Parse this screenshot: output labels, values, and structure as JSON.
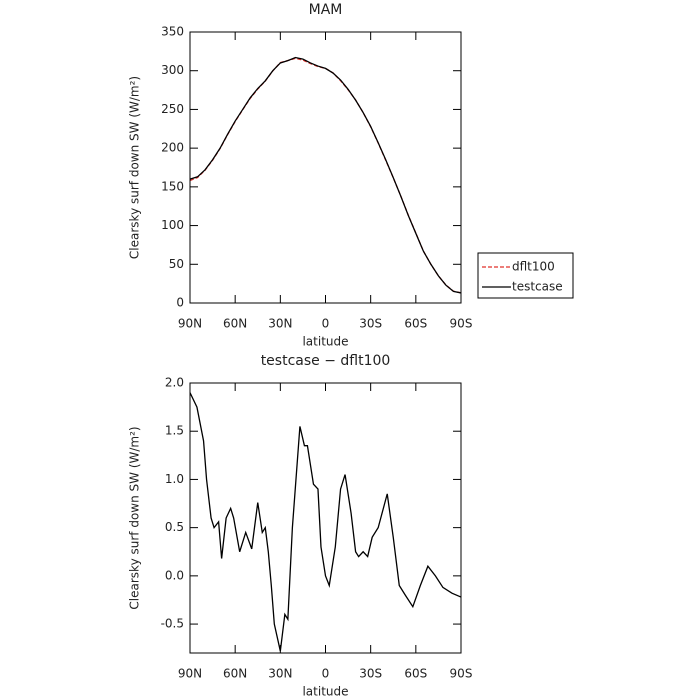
{
  "chart_data": [
    {
      "type": "line",
      "title": "MAM",
      "x_label": "latitude",
      "y_label": "Clearsky surf down SW (W/m²)",
      "x": [
        90,
        85,
        80,
        75,
        70,
        65,
        60,
        55,
        50,
        45,
        40,
        35,
        30,
        25,
        20,
        15,
        10,
        5,
        0,
        -5,
        -10,
        -15,
        -20,
        -25,
        -30,
        -35,
        -40,
        -45,
        -50,
        -55,
        -60,
        -65,
        -70,
        -75,
        -80,
        -85,
        -90
      ],
      "series": [
        {
          "name": "dflt100",
          "color": "#e0302a",
          "dash": true,
          "values": [
            158.2,
            162,
            171.5,
            184.4,
            199.6,
            217.5,
            234.4,
            249.6,
            264.3,
            276.4,
            286.6,
            299.8,
            310.5,
            313.2,
            316,
            313.7,
            309.2,
            305.3,
            303,
            297.2,
            287.1,
            275.5,
            262.2,
            246,
            227.6,
            206.6,
            184.4,
            161.8,
            138.2,
            113.3,
            90.3,
            67.1,
            49.9,
            35,
            23.1,
            15.2,
            13.2
          ]
        },
        {
          "name": "testcase",
          "color": "#000000",
          "dash": false,
          "values": [
            160,
            163,
            172,
            185,
            200,
            218,
            235,
            250,
            265,
            277,
            287,
            300,
            310,
            313,
            317,
            315,
            310,
            306,
            303,
            297,
            288,
            276,
            262,
            246,
            228,
            207,
            185,
            162,
            138,
            113,
            90,
            67,
            50,
            35,
            23,
            15,
            13
          ]
        }
      ],
      "xlim": [
        90,
        -90
      ],
      "xticks": [
        {
          "value": 90,
          "label": "90N"
        },
        {
          "value": 60,
          "label": "60N"
        },
        {
          "value": 30,
          "label": "30N"
        },
        0,
        {
          "value": -30,
          "label": "30S"
        },
        {
          "value": -60,
          "label": "60S"
        },
        {
          "value": -90,
          "label": "90S"
        }
      ],
      "ylim": [
        0,
        350
      ],
      "yticks": [
        0,
        50,
        100,
        150,
        200,
        250,
        300,
        350
      ],
      "legend": "right"
    },
    {
      "type": "line",
      "title": "testcase − dflt100",
      "x_label": "latitude",
      "y_label": "Clearsky surf down SW (W/m²)",
      "x": [
        90,
        85.4,
        81,
        79,
        76,
        74,
        71,
        69,
        66,
        63,
        61,
        57,
        53,
        49,
        45,
        42,
        40,
        38,
        36,
        34,
        30,
        27,
        25,
        22,
        17,
        14,
        12,
        8,
        5,
        3,
        0,
        -2.5,
        -6.5,
        -10,
        -13,
        -17,
        -20,
        -22,
        -25,
        -28,
        -31,
        -35,
        -41,
        -45,
        -49,
        -53,
        -58,
        -63,
        -68,
        -73,
        -78,
        -84,
        -90
      ],
      "series": [
        {
          "name": "testcase - dflt100",
          "color": "#000000",
          "dash": false,
          "values": [
            1.9,
            1.75,
            1.4,
            1.0,
            0.6,
            0.5,
            0.56,
            0.18,
            0.6,
            0.7,
            0.6,
            0.25,
            0.45,
            0.28,
            0.76,
            0.45,
            0.5,
            0.25,
            -0.1,
            -0.5,
            -0.78,
            -0.4,
            -0.45,
            0.5,
            1.55,
            1.35,
            1.35,
            0.95,
            0.9,
            0.3,
            0.0,
            -0.1,
            0.3,
            0.9,
            1.05,
            0.65,
            0.25,
            0.2,
            0.25,
            0.2,
            0.4,
            0.5,
            0.85,
            0.4,
            -0.1,
            -0.2,
            -0.32,
            -0.1,
            0.1,
            0.0,
            -0.12,
            -0.18,
            -0.22
          ]
        }
      ],
      "xlim": [
        90,
        -90
      ],
      "xticks": [
        {
          "value": 90,
          "label": "90N"
        },
        {
          "value": 60,
          "label": "60N"
        },
        {
          "value": 30,
          "label": "30N"
        },
        0,
        {
          "value": -30,
          "label": "30S"
        },
        {
          "value": -60,
          "label": "60S"
        },
        {
          "value": -90,
          "label": "90S"
        }
      ],
      "ylim": [
        -0.8,
        2.0
      ],
      "yticks": [
        -0.5,
        {
          "value": 0,
          "label": "0.0"
        },
        0.5,
        {
          "value": 1,
          "label": "1.0"
        },
        1.5,
        {
          "value": 2,
          "label": "2.0"
        }
      ]
    }
  ]
}
